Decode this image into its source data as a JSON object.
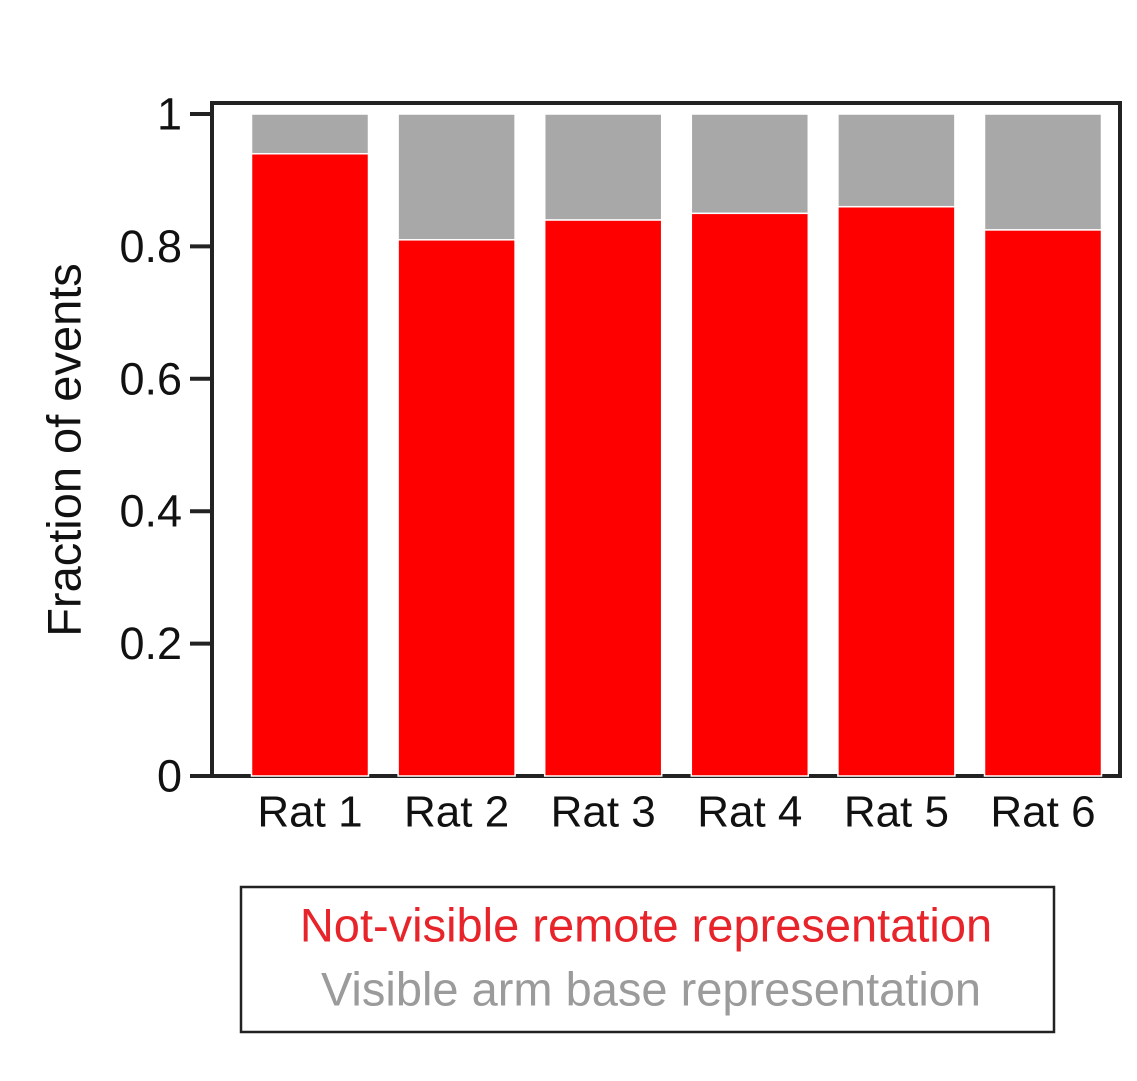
{
  "chart_data": {
    "type": "bar",
    "stacked": true,
    "categories": [
      "Rat 1",
      "Rat 2",
      "Rat 3",
      "Rat 4",
      "Rat 5",
      "Rat 6"
    ],
    "series": [
      {
        "name": "Not-visible remote representation",
        "color": "#ff0000",
        "values": [
          0.94,
          0.81,
          0.84,
          0.85,
          0.86,
          0.825
        ]
      },
      {
        "name": "Visible arm base representation",
        "color": "#a8a8a8",
        "values": [
          0.06,
          0.19,
          0.16,
          0.15,
          0.14,
          0.175
        ]
      }
    ],
    "title": "",
    "xlabel": "",
    "ylabel": "Fraction of events",
    "ylim": [
      0,
      1
    ],
    "yticks": [
      0,
      0.2,
      0.4,
      0.6,
      0.8,
      1
    ],
    "ytick_labels": [
      "0",
      "0.2",
      "0.4",
      "0.6",
      "0.8",
      "1"
    ],
    "grid": false,
    "legend_position": "bottom",
    "legend_colors": {
      "Not-visible remote representation": "#e8242b",
      "Visible arm base representation": "#9b9b9b"
    }
  }
}
